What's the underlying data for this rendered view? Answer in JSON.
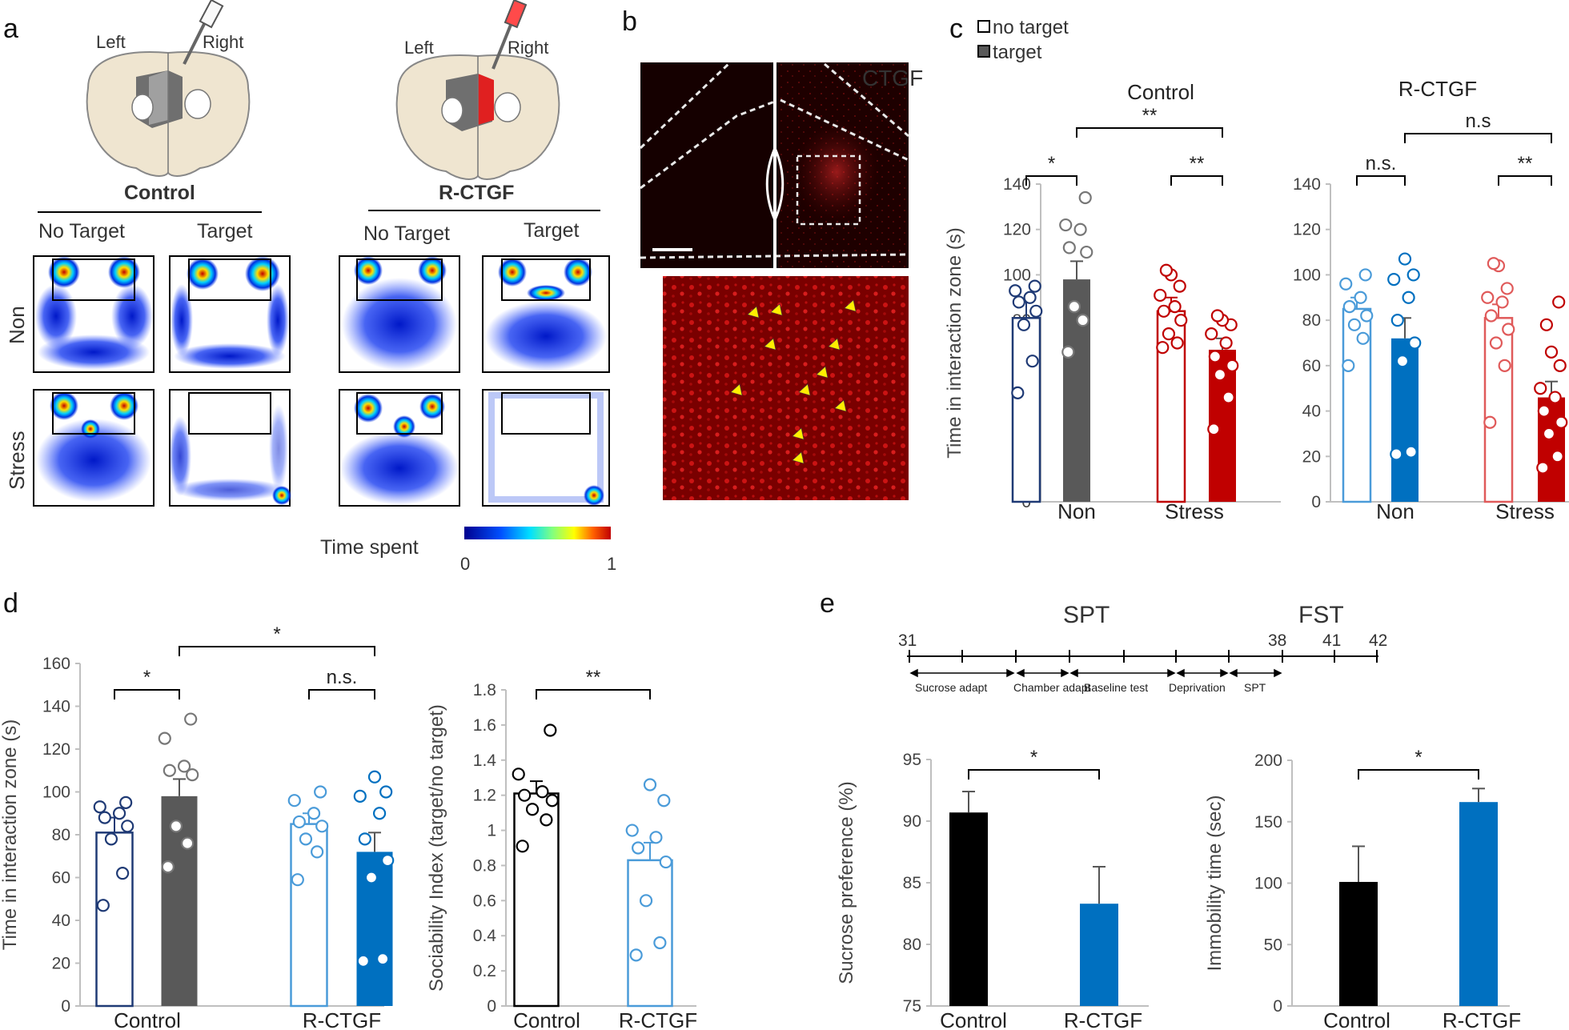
{
  "panels": {
    "a": "a",
    "b": "b",
    "c": "c",
    "d": "d",
    "e": "e"
  },
  "colors": {
    "navy": "#1f3a75",
    "gray": "#595959",
    "red": "#c00000",
    "lightred": "#e05a5a",
    "blue": "#0070c0",
    "lightblue": "#4a9bd9",
    "black": "#000000"
  },
  "panel_a": {
    "groups": [
      "Control",
      "R-CTGF"
    ],
    "sides": [
      "Left",
      "Right"
    ],
    "columns": [
      "No Target",
      "Target"
    ],
    "rows": [
      "Non",
      "Stress"
    ],
    "colorbar_label": "Time spent",
    "colorbar_min": "0",
    "colorbar_max": "1"
  },
  "panel_b": {
    "stain_label": "CTGF"
  },
  "panel_c": {
    "legend": {
      "no_target": "no target",
      "target": "target"
    }
  },
  "panel_e": {
    "timeline": {
      "spt_label": "SPT",
      "fst_label": "FST",
      "days": [
        "31",
        "38",
        "41",
        "42"
      ],
      "phases": [
        "Sucrose adapt",
        "Chamber adapt",
        "Baseline test",
        "Deprivation",
        "SPT"
      ]
    }
  },
  "chart_data": [
    {
      "id": "c_control",
      "type": "bar",
      "title": "Control",
      "ylabel": "Time in interaction zone (s)",
      "ylim": [
        0,
        140
      ],
      "yticks": [
        0,
        20,
        40,
        60,
        80,
        100,
        120,
        140
      ],
      "group_labels": [
        "Non",
        "Stress"
      ],
      "bars": [
        {
          "group": "Non",
          "series": "no target",
          "value": 81,
          "err": 7,
          "style": "hollow",
          "color": "#1f3a75",
          "points": [
            48,
            62,
            78,
            84,
            88,
            90,
            93,
            95
          ]
        },
        {
          "group": "Non",
          "series": "target",
          "value": 98,
          "err": 8,
          "style": "filled",
          "color": "#595959",
          "points": [
            66,
            80,
            86,
            110,
            112,
            120,
            122,
            134
          ]
        },
        {
          "group": "Stress",
          "series": "no target",
          "value": 84,
          "err": 6,
          "style": "hollow",
          "color": "#c00000",
          "points": [
            68,
            70,
            74,
            80,
            84,
            86,
            91,
            95,
            100,
            102
          ]
        },
        {
          "group": "Stress",
          "series": "target",
          "value": 67,
          "err": 5,
          "style": "filled",
          "color": "#c00000",
          "points": [
            32,
            46,
            56,
            60,
            64,
            70,
            74,
            78,
            80,
            82
          ]
        }
      ],
      "significance": [
        {
          "label": "*",
          "between": [
            0,
            1
          ]
        },
        {
          "label": "**",
          "between": [
            2,
            3
          ]
        },
        {
          "label": "**",
          "between": [
            1,
            3
          ],
          "top": true
        }
      ]
    },
    {
      "id": "c_rctgf",
      "type": "bar",
      "title": "R-CTGF",
      "ylabel": "",
      "ylim": [
        0,
        140
      ],
      "yticks": [
        0,
        20,
        40,
        60,
        80,
        100,
        120,
        140
      ],
      "group_labels": [
        "Non",
        "Stress"
      ],
      "bars": [
        {
          "group": "Non",
          "series": "no target",
          "value": 85,
          "err": 5,
          "style": "hollow",
          "color": "#4a9bd9",
          "points": [
            60,
            72,
            78,
            82,
            86,
            90,
            96,
            100
          ]
        },
        {
          "group": "Non",
          "series": "target",
          "value": 72,
          "err": 9,
          "style": "filled",
          "color": "#0070c0",
          "points": [
            21,
            22,
            62,
            70,
            80,
            90,
            98,
            100,
            107
          ]
        },
        {
          "group": "Stress",
          "series": "no target",
          "value": 81,
          "err": 6,
          "style": "hollow",
          "color": "#e05a5a",
          "points": [
            35,
            60,
            70,
            76,
            82,
            88,
            90,
            94,
            104,
            105
          ]
        },
        {
          "group": "Stress",
          "series": "target",
          "value": 46,
          "err": 7,
          "style": "filled",
          "color": "#c00000",
          "points": [
            15,
            20,
            30,
            35,
            40,
            46,
            50,
            60,
            66,
            78,
            88
          ]
        }
      ],
      "significance": [
        {
          "label": "n.s.",
          "between": [
            0,
            1
          ]
        },
        {
          "label": "**",
          "between": [
            2,
            3
          ]
        },
        {
          "label": "n.s",
          "between": [
            1,
            3
          ],
          "top": true
        }
      ]
    },
    {
      "id": "d_time",
      "type": "bar",
      "title": "",
      "ylabel": "Time in interaction zone (s)",
      "ylim": [
        0,
        160
      ],
      "yticks": [
        0,
        20,
        40,
        60,
        80,
        100,
        120,
        140,
        160
      ],
      "group_labels": [
        "Control",
        "R-CTGF"
      ],
      "bars": [
        {
          "group": "Control",
          "series": "no target",
          "value": 81,
          "err": 7,
          "style": "hollow",
          "color": "#1f3a75",
          "points": [
            47,
            62,
            78,
            84,
            88,
            90,
            93,
            95
          ]
        },
        {
          "group": "Control",
          "series": "target",
          "value": 98,
          "err": 8,
          "style": "filled",
          "color": "#595959",
          "points": [
            65,
            76,
            84,
            108,
            110,
            112,
            125,
            134
          ]
        },
        {
          "group": "R-CTGF",
          "series": "no target",
          "value": 85,
          "err": 5,
          "style": "hollow",
          "color": "#4a9bd9",
          "points": [
            59,
            72,
            78,
            84,
            86,
            90,
            96,
            100
          ]
        },
        {
          "group": "R-CTGF",
          "series": "target",
          "value": 72,
          "err": 9,
          "style": "filled",
          "color": "#0070c0",
          "points": [
            21,
            22,
            60,
            68,
            78,
            90,
            98,
            100,
            107
          ]
        }
      ],
      "significance": [
        {
          "label": "*",
          "between": [
            0,
            1
          ]
        },
        {
          "label": "n.s.",
          "between": [
            2,
            3
          ]
        },
        {
          "label": "*",
          "between": [
            1,
            3
          ],
          "top": true
        }
      ]
    },
    {
      "id": "d_index",
      "type": "bar",
      "title": "",
      "ylabel": "Sociability Index (target/no target)",
      "ylim": [
        0,
        1.8
      ],
      "yticks": [
        0,
        0.2,
        0.4,
        0.6,
        0.8,
        1,
        1.2,
        1.4,
        1.6,
        1.8
      ],
      "group_labels": [
        "Control",
        "R-CTGF"
      ],
      "bars": [
        {
          "group": "Control",
          "series": "Control",
          "value": 1.21,
          "err": 0.07,
          "style": "hollow",
          "color": "#000000",
          "points": [
            0.91,
            1.06,
            1.12,
            1.17,
            1.2,
            1.22,
            1.32,
            1.57
          ]
        },
        {
          "group": "R-CTGF",
          "series": "R-CTGF",
          "value": 0.83,
          "err": 0.1,
          "style": "hollow",
          "color": "#4a9bd9",
          "points": [
            0.29,
            0.36,
            0.6,
            0.82,
            0.9,
            0.96,
            1.0,
            1.17,
            1.26
          ]
        }
      ],
      "significance": [
        {
          "label": "**",
          "between": [
            0,
            1
          ]
        }
      ]
    },
    {
      "id": "e_sucrose",
      "type": "bar",
      "title": "",
      "ylabel": "Sucrose preference (%)",
      "ylim": [
        75,
        95
      ],
      "yticks": [
        75,
        80,
        85,
        90,
        95
      ],
      "group_labels": [
        "Control",
        "R-CTGF"
      ],
      "bars": [
        {
          "group": "Control",
          "series": "Control",
          "value": 90.7,
          "err": 1.7,
          "style": "filled",
          "color": "#000000",
          "points": []
        },
        {
          "group": "R-CTGF",
          "series": "R-CTGF",
          "value": 83.3,
          "err": 3.0,
          "style": "filled",
          "color": "#0070c0",
          "points": []
        }
      ],
      "significance": [
        {
          "label": "*",
          "between": [
            0,
            1
          ]
        }
      ]
    },
    {
      "id": "e_immobility",
      "type": "bar",
      "title": "",
      "ylabel": "Immobility time (sec)",
      "ylim": [
        0,
        200
      ],
      "yticks": [
        0,
        50,
        100,
        150,
        200
      ],
      "group_labels": [
        "Control",
        "R-CTGF"
      ],
      "bars": [
        {
          "group": "Control",
          "series": "Control",
          "value": 101,
          "err": 29,
          "style": "filled",
          "color": "#000000",
          "points": []
        },
        {
          "group": "R-CTGF",
          "series": "R-CTGF",
          "value": 166,
          "err": 11,
          "style": "filled",
          "color": "#0070c0",
          "points": []
        }
      ],
      "significance": [
        {
          "label": "*",
          "between": [
            0,
            1
          ]
        }
      ]
    }
  ]
}
